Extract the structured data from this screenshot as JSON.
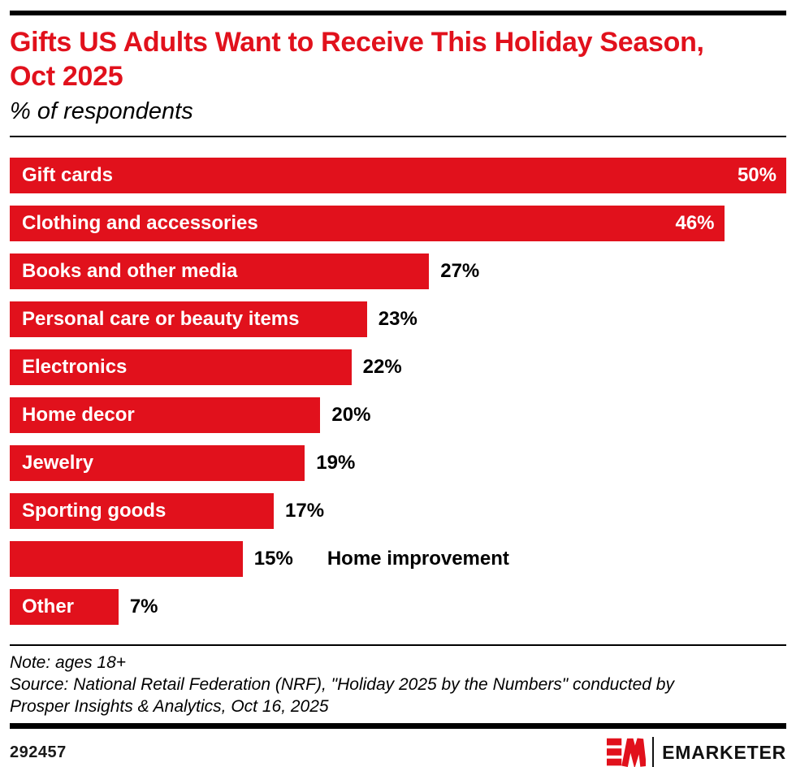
{
  "header": {
    "title": "Gifts US Adults Want to Receive This Holiday Season, Oct 2025",
    "subtitle": "% of respondents"
  },
  "chart_data": {
    "type": "bar",
    "orientation": "horizontal",
    "title": "Gifts US Adults Want to Receive This Holiday Season, Oct 2025",
    "subtitle": "% of respondents",
    "unit": "%",
    "scale_max": 50,
    "grid": false,
    "legend": "none",
    "categories": [
      "Gift cards",
      "Clothing and accessories",
      "Books and other media",
      "Personal care or beauty items",
      "Electronics",
      "Home decor",
      "Jewelry",
      "Sporting goods",
      "Home improvement",
      "Other"
    ],
    "values": [
      50,
      46,
      27,
      23,
      22,
      20,
      19,
      17,
      15,
      7
    ],
    "bars": [
      {
        "label": "Gift cards",
        "value": 50,
        "display": "50%",
        "label_placement": "inside",
        "value_placement": "inside"
      },
      {
        "label": "Clothing and accessories",
        "value": 46,
        "display": "46%",
        "label_placement": "inside",
        "value_placement": "inside"
      },
      {
        "label": "Books and other media",
        "value": 27,
        "display": "27%",
        "label_placement": "inside",
        "value_placement": "outside"
      },
      {
        "label": "Personal care or beauty items",
        "value": 23,
        "display": "23%",
        "label_placement": "inside",
        "value_placement": "outside"
      },
      {
        "label": "Electronics",
        "value": 22,
        "display": "22%",
        "label_placement": "inside",
        "value_placement": "outside"
      },
      {
        "label": "Home decor",
        "value": 20,
        "display": "20%",
        "label_placement": "inside",
        "value_placement": "outside"
      },
      {
        "label": "Jewelry",
        "value": 19,
        "display": "19%",
        "label_placement": "inside",
        "value_placement": "outside"
      },
      {
        "label": "Sporting goods",
        "value": 17,
        "display": "17%",
        "label_placement": "inside",
        "value_placement": "outside"
      },
      {
        "label": "Home improvement",
        "value": 15,
        "display": "15%",
        "label_placement": "outside",
        "value_placement": "outside"
      },
      {
        "label": "Other",
        "value": 7,
        "display": "7%",
        "label_placement": "inside",
        "value_placement": "outside"
      }
    ]
  },
  "footer": {
    "note": "Note: ages 18+",
    "source": "Source: National Retail Federation (NRF), \"Holiday 2025 by the Numbers\" conducted by Prosper Insights & Analytics, Oct 16, 2025",
    "chart_id": "292457",
    "brand": "EMARKETER"
  },
  "colors": {
    "accent_red": "#e1111c",
    "bar_text": "#ffffff",
    "text": "#000000"
  }
}
